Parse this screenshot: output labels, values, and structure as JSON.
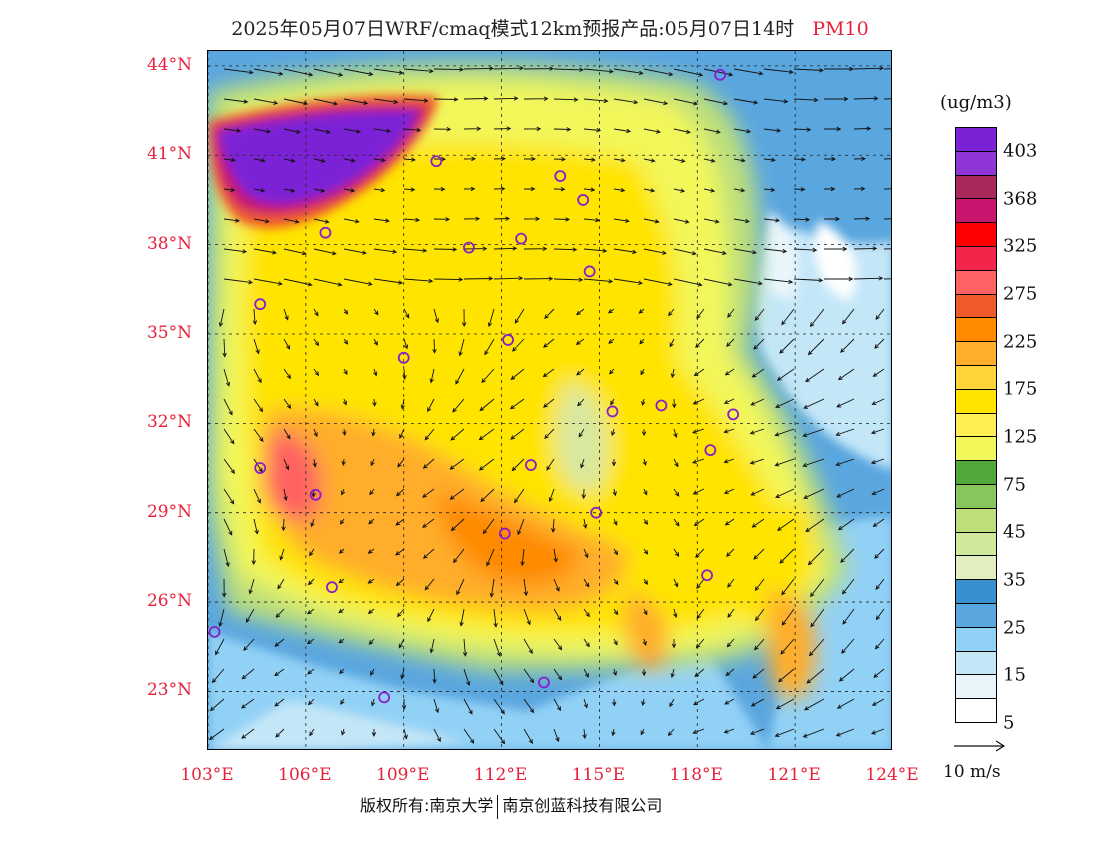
{
  "header": {
    "title": "2025年05月07日WRF/cmaq模式12km预报产品:05月07日14时",
    "variable": "PM10"
  },
  "map": {
    "lat_labels": [
      "44°N",
      "41°N",
      "38°N",
      "35°N",
      "32°N",
      "29°N",
      "26°N",
      "23°N"
    ],
    "lon_labels": [
      "103°E",
      "106°E",
      "109°E",
      "112°E",
      "115°E",
      "118°E",
      "121°E",
      "124°E"
    ],
    "extent": {
      "lon_min": 103,
      "lon_max": 124,
      "lat_min": 21,
      "lat_max": 44.5
    },
    "city_markers": [
      {
        "lon": 118.7,
        "lat": 43.7
      },
      {
        "lon": 110.0,
        "lat": 40.8
      },
      {
        "lon": 113.8,
        "lat": 40.3
      },
      {
        "lon": 114.5,
        "lat": 39.5
      },
      {
        "lon": 106.6,
        "lat": 38.4
      },
      {
        "lon": 111.0,
        "lat": 37.9
      },
      {
        "lon": 112.6,
        "lat": 38.2
      },
      {
        "lon": 114.7,
        "lat": 37.1
      },
      {
        "lon": 104.6,
        "lat": 36.0
      },
      {
        "lon": 112.2,
        "lat": 34.8
      },
      {
        "lon": 109.0,
        "lat": 34.2
      },
      {
        "lon": 115.4,
        "lat": 32.4
      },
      {
        "lon": 116.9,
        "lat": 32.6
      },
      {
        "lon": 119.1,
        "lat": 32.3
      },
      {
        "lon": 104.6,
        "lat": 30.5
      },
      {
        "lon": 112.9,
        "lat": 30.6
      },
      {
        "lon": 118.4,
        "lat": 31.1
      },
      {
        "lon": 106.3,
        "lat": 29.6
      },
      {
        "lon": 114.9,
        "lat": 29.0
      },
      {
        "lon": 112.1,
        "lat": 28.3
      },
      {
        "lon": 118.3,
        "lat": 26.9
      },
      {
        "lon": 106.8,
        "lat": 26.5
      },
      {
        "lon": 103.2,
        "lat": 25.0
      },
      {
        "lon": 108.4,
        "lat": 22.8
      },
      {
        "lon": 113.3,
        "lat": 23.3
      }
    ]
  },
  "colorbar": {
    "unit": "(ug/m3)",
    "colors": [
      "#7b22d6",
      "#8f36d8",
      "#a8285c",
      "#c8166e",
      "#ff0000",
      "#f2254a",
      "#ff6262",
      "#ef5a2a",
      "#ff8a00",
      "#ffad2b",
      "#ffd33a",
      "#ffe400",
      "#ffef55",
      "#f2f75a",
      "#52a83a",
      "#86c65a",
      "#bcdf7c",
      "#cfe89c",
      "#e0eec0",
      "#3a8fce",
      "#5aa6df",
      "#92d1f6",
      "#c4e7f8",
      "#e9f5fb",
      "#ffffff"
    ],
    "labels": [
      "403",
      "368",
      "325",
      "275",
      "225",
      "175",
      "125",
      "75",
      "45",
      "35",
      "25",
      "15",
      "5"
    ]
  },
  "wind_reference": {
    "label": "10 m/s"
  },
  "footer": {
    "left": "版权所有:南京大学",
    "right": "南京创蓝科技有限公司"
  }
}
